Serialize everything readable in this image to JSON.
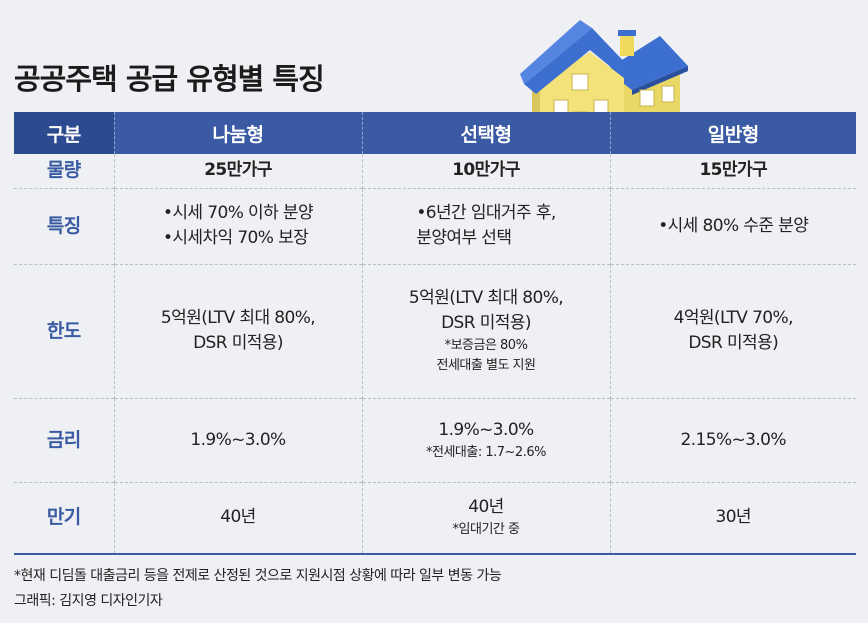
{
  "title": "공공주택 공급 유형별 특징",
  "header": {
    "col0": "구분",
    "col1": "나눔형",
    "col2": "선택형",
    "col3": "일반형"
  },
  "rows": [
    {
      "label": "물량",
      "c1": [
        "25만가구"
      ],
      "c2": [
        "10만가구"
      ],
      "c3": [
        "15만가구"
      ],
      "c1_note": "",
      "c2_note": ""
    },
    {
      "label": "특징",
      "c1": [
        "•시세 70% 이하 분양",
        "•시세차익 70% 보장"
      ],
      "c2": [
        "•6년간 임대거주 후,",
        "분양여부 선택"
      ],
      "c3": [
        "•시세 80% 수준 분양"
      ]
    },
    {
      "label": "한도",
      "c1": [
        "5억원(LTV 최대 80%,",
        "DSR 미적용)"
      ],
      "c2": [
        "5억원(LTV 최대 80%,",
        "DSR 미적용)"
      ],
      "c2_note": [
        "*보증금은 80%",
        "전세대출 별도 지원"
      ],
      "c3": [
        "4억원(LTV 70%,",
        "DSR 미적용)"
      ]
    },
    {
      "label": "금리",
      "c1": [
        "1.9%~3.0%"
      ],
      "c2": [
        "1.9%~3.0%"
      ],
      "c2_note": [
        "*전세대출: 1.7~2.6%"
      ],
      "c3": [
        "2.15%~3.0%"
      ]
    },
    {
      "label": "만기",
      "c1": [
        "40년"
      ],
      "c2": [
        "40년"
      ],
      "c2_note": [
        "*임대기간 중"
      ],
      "c3": [
        "30년"
      ]
    }
  ],
  "footnote": "*현재 디딤돌 대출금리 등을 전제로 산정된 것으로 지원시점 상황에 따라 일부 변동 가능",
  "credit": "그래픽: 김지영 디자인기자",
  "colors": {
    "header_blue": "#3a5ba4",
    "roof_blue": "#3d6fd0",
    "wall_yellow": "#f3e27a"
  }
}
